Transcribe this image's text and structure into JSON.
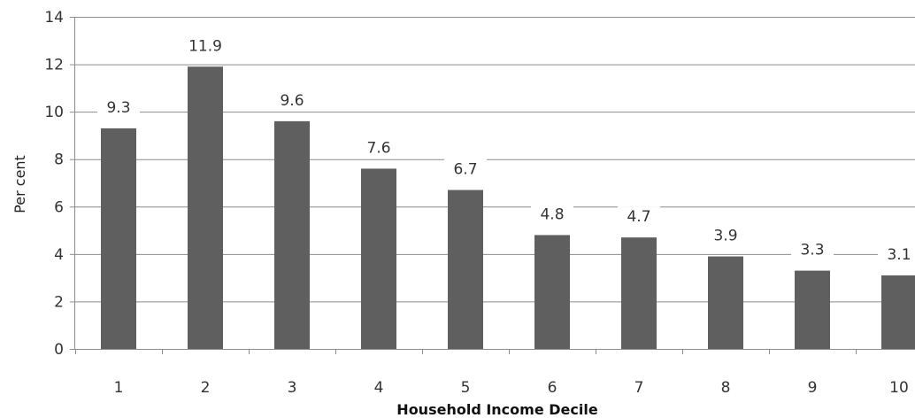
{
  "chart_data": {
    "type": "bar",
    "categories": [
      "1",
      "2",
      "3",
      "4",
      "5",
      "6",
      "7",
      "8",
      "9",
      "10"
    ],
    "values": [
      9.3,
      11.9,
      9.6,
      7.6,
      6.7,
      4.8,
      4.7,
      3.9,
      3.3,
      3.1
    ],
    "data_labels": [
      "9.3",
      "11.9",
      "9.6",
      "7.6",
      "6.7",
      "4.8",
      "4.7",
      "3.9",
      "3.3",
      "3.1"
    ],
    "title": "",
    "xlabel": "Household Income Decile",
    "ylabel": "Per cent",
    "ylim": [
      0,
      14
    ],
    "yticks": [
      0,
      2,
      4,
      6,
      8,
      10,
      12,
      14
    ],
    "grid": true,
    "legend": "none",
    "colors": {
      "bar": "#5f5f5f",
      "grid": "#8c8c8c",
      "axis": "#8c8c8c"
    }
  }
}
